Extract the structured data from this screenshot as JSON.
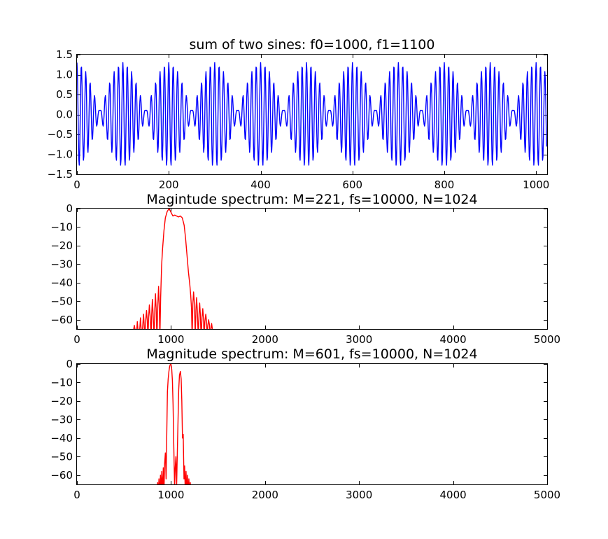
{
  "chart_data": [
    {
      "type": "line",
      "title": "sum of two sines: f0=1000, f1=1100",
      "xlabel": "",
      "ylabel": "",
      "xlim": [
        0,
        1024
      ],
      "ylim": [
        -1.5,
        1.5
      ],
      "xticks": [
        0,
        200,
        400,
        600,
        800,
        1000
      ],
      "yticks": [
        -1.5,
        -1.0,
        -0.5,
        0.0,
        0.5,
        1.0,
        1.5
      ],
      "xtick_labels": [
        "0",
        "200",
        "400",
        "600",
        "800",
        "1000"
      ],
      "ytick_labels": [
        "−1.5",
        "−1.0",
        "−0.5",
        "0.0",
        "0.5",
        "1.0",
        "1.5"
      ],
      "grid": false,
      "series": [
        {
          "color": "#0000ff",
          "generator": "sum_of_sines",
          "params": {
            "fs": 10000,
            "f0": 1000,
            "f1": 1100,
            "a0": 0.7,
            "a1": 0.6,
            "n": 1024
          }
        }
      ]
    },
    {
      "type": "line",
      "title": "Magintude spectrum: M=221, fs=10000, N=1024",
      "xlabel": "",
      "ylabel": "",
      "xlim": [
        0,
        5000
      ],
      "ylim": [
        -65,
        0
      ],
      "xticks": [
        0,
        1000,
        2000,
        3000,
        4000,
        5000
      ],
      "yticks": [
        -60,
        -50,
        -40,
        -30,
        -20,
        -10,
        0
      ],
      "xtick_labels": [
        "0",
        "1000",
        "2000",
        "3000",
        "4000",
        "5000"
      ],
      "ytick_labels": [
        "−60",
        "−50",
        "−40",
        "−30",
        "−20",
        "−10",
        "0"
      ],
      "grid": false,
      "series": [
        {
          "color": "#ff0000",
          "x": [
            600,
            610,
            620,
            628,
            635,
            642,
            650,
            660,
            668,
            675,
            683,
            690,
            700,
            708,
            715,
            722,
            730,
            740,
            748,
            755,
            762,
            770,
            780,
            788,
            795,
            802,
            810,
            820,
            828,
            835,
            842,
            850,
            860,
            868,
            875,
            882,
            890,
            900,
            910,
            925,
            940,
            960,
            980,
            1000,
            1020,
            1040,
            1060,
            1080,
            1100,
            1120,
            1140,
            1155,
            1170,
            1185,
            1200,
            1210,
            1218,
            1225,
            1232,
            1240,
            1250,
            1258,
            1265,
            1272,
            1280,
            1290,
            1298,
            1305,
            1312,
            1320,
            1330,
            1338,
            1345,
            1352,
            1360,
            1370,
            1378,
            1385,
            1392,
            1400,
            1410,
            1418,
            1425,
            1432,
            1440,
            1450,
            1460
          ],
          "y": [
            -66,
            -63,
            -66,
            -70,
            -66,
            -61,
            -66,
            -70,
            -65,
            -59,
            -65,
            -70,
            -63,
            -57,
            -63,
            -70,
            -61,
            -55,
            -61,
            -70,
            -59,
            -52,
            -59,
            -70,
            -57,
            -49,
            -57,
            -70,
            -54,
            -46,
            -54,
            -70,
            -52,
            -42,
            -52,
            -70,
            -48,
            -31,
            -22,
            -12,
            -5,
            -1.5,
            0,
            -2,
            -4,
            -3.5,
            -4,
            -4.5,
            -4,
            -5,
            -9,
            -16,
            -25,
            -34,
            -41,
            -47,
            -54,
            -70,
            -52,
            -45,
            -52,
            -70,
            -55,
            -48,
            -55,
            -70,
            -57,
            -51,
            -57,
            -70,
            -59,
            -54,
            -59,
            -70,
            -61,
            -57,
            -61,
            -70,
            -63,
            -60,
            -63,
            -70,
            -65,
            -62,
            -65,
            -70,
            -68
          ]
        }
      ]
    },
    {
      "type": "line",
      "title": "Magnitude spectrum: M=601, fs=10000, N=1024",
      "xlabel": "",
      "ylabel": "",
      "xlim": [
        0,
        5000
      ],
      "ylim": [
        -65,
        0
      ],
      "xticks": [
        0,
        1000,
        2000,
        3000,
        4000,
        5000
      ],
      "yticks": [
        -60,
        -50,
        -40,
        -30,
        -20,
        -10,
        0
      ],
      "xtick_labels": [
        "0",
        "1000",
        "2000",
        "3000",
        "4000",
        "5000"
      ],
      "ytick_labels": [
        "−60",
        "−50",
        "−40",
        "−30",
        "−20",
        "−10",
        "0"
      ],
      "grid": false,
      "series": [
        {
          "color": "#ff0000",
          "x": [
            850,
            858,
            865,
            872,
            880,
            888,
            895,
            902,
            910,
            918,
            925,
            932,
            940,
            948,
            955,
            962,
            970,
            978,
            985,
            992,
            1000,
            1008,
            1015,
            1022,
            1030,
            1038,
            1045,
            1052,
            1060,
            1068,
            1075,
            1082,
            1090,
            1100,
            1108,
            1115,
            1122,
            1130,
            1138,
            1145,
            1152,
            1160,
            1168,
            1175,
            1182,
            1190,
            1198,
            1205,
            1212,
            1220,
            1230
          ],
          "y": [
            -68,
            -64,
            -70,
            -62,
            -70,
            -60,
            -70,
            -58,
            -70,
            -56,
            -70,
            -54,
            -48,
            -62,
            -38,
            -15,
            -8,
            -4,
            -1.5,
            -0.3,
            0,
            -3,
            -9,
            -22,
            -45,
            -66,
            -56,
            -50,
            -66,
            -46,
            -30,
            -14,
            -6,
            -4,
            -8,
            -20,
            -40,
            -38,
            -62,
            -55,
            -70,
            -58,
            -70,
            -60,
            -70,
            -62,
            -70,
            -64,
            -70,
            -66,
            -70
          ]
        }
      ]
    }
  ]
}
